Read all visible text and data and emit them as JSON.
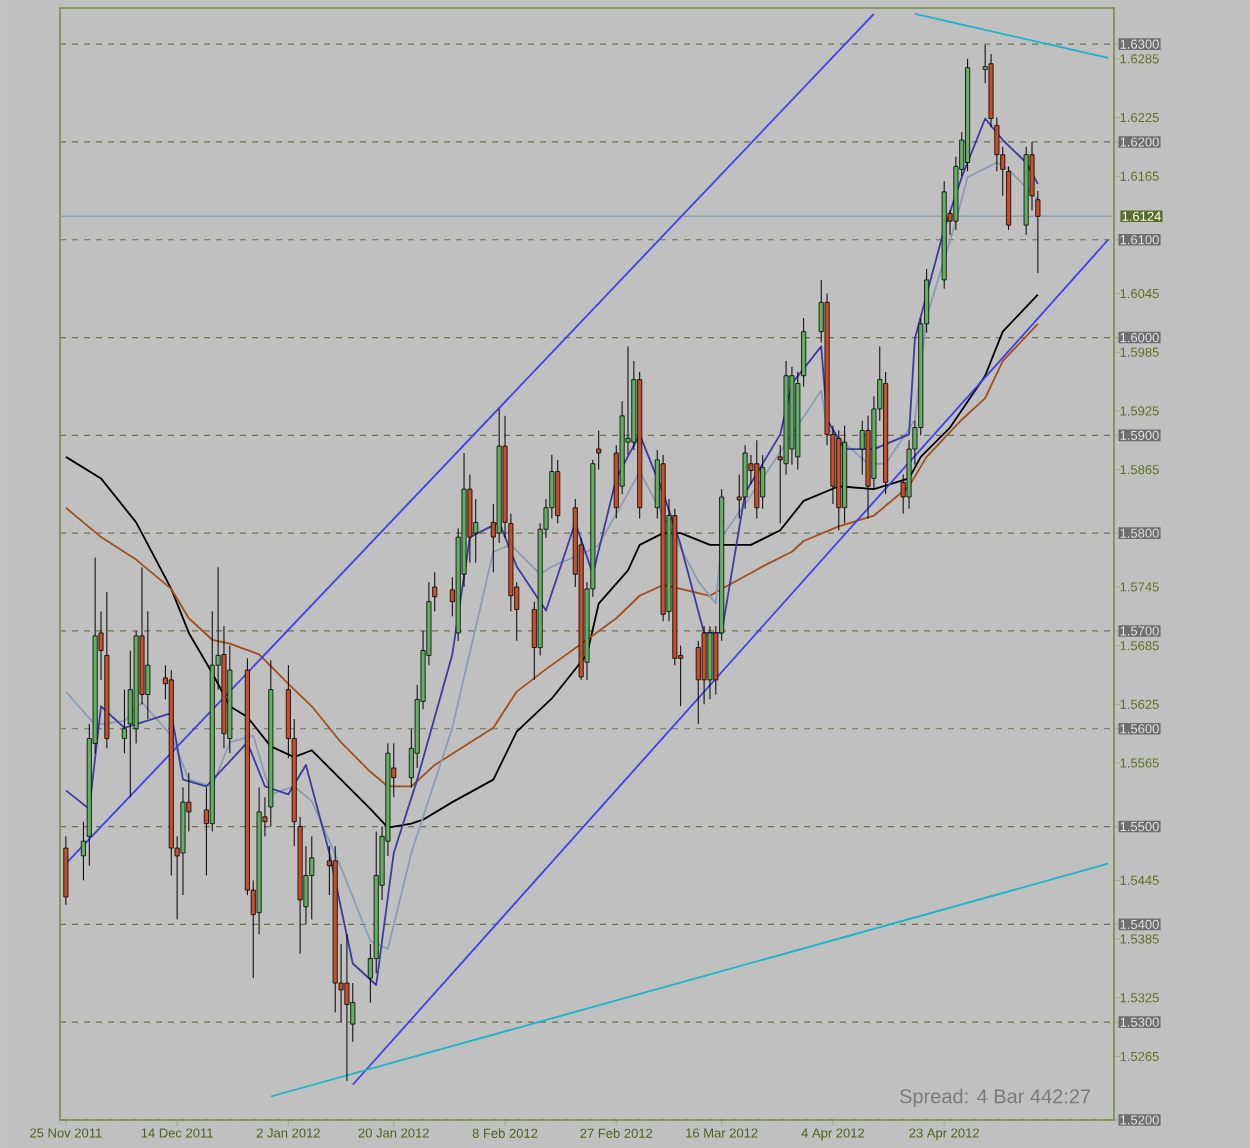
{
  "chart_data": {
    "type": "candlestick",
    "x": [
      "2011-11-25",
      "2011-11-28",
      "2011-11-29",
      "2011-11-30",
      "2011-12-01",
      "2011-12-02",
      "2011-12-05",
      "2011-12-06",
      "2011-12-07",
      "2011-12-08",
      "2011-12-09",
      "2011-12-12",
      "2011-12-13",
      "2011-12-14",
      "2011-12-15",
      "2011-12-16",
      "2011-12-19",
      "2011-12-20",
      "2011-12-21",
      "2011-12-22",
      "2011-12-23",
      "2011-12-26",
      "2011-12-27",
      "2011-12-28",
      "2011-12-29",
      "2011-12-30",
      "2012-01-02",
      "2012-01-03",
      "2012-01-04",
      "2012-01-05",
      "2012-01-06",
      "2012-01-09",
      "2012-01-10",
      "2012-01-11",
      "2012-01-12",
      "2012-01-13",
      "2012-01-16",
      "2012-01-17",
      "2012-01-18",
      "2012-01-19",
      "2012-01-20",
      "2012-01-23",
      "2012-01-24",
      "2012-01-25",
      "2012-01-26",
      "2012-01-27",
      "2012-01-30",
      "2012-01-31",
      "2012-02-01",
      "2012-02-02",
      "2012-02-03",
      "2012-02-06",
      "2012-02-07",
      "2012-02-08",
      "2012-02-09",
      "2012-02-10",
      "2012-02-13",
      "2012-02-14",
      "2012-02-15",
      "2012-02-16",
      "2012-02-17",
      "2012-02-20",
      "2012-02-21",
      "2012-02-22",
      "2012-02-23",
      "2012-02-24",
      "2012-02-27",
      "2012-02-28",
      "2012-02-29",
      "2012-03-01",
      "2012-03-02",
      "2012-03-05",
      "2012-03-06",
      "2012-03-07",
      "2012-03-08",
      "2012-03-09",
      "2012-03-12",
      "2012-03-13",
      "2012-03-14",
      "2012-03-15",
      "2012-03-16",
      "2012-03-19",
      "2012-03-20",
      "2012-03-21",
      "2012-03-22",
      "2012-03-23",
      "2012-03-26",
      "2012-03-27",
      "2012-03-28",
      "2012-03-29",
      "2012-03-30",
      "2012-04-02",
      "2012-04-03",
      "2012-04-04",
      "2012-04-05",
      "2012-04-06",
      "2012-04-09",
      "2012-04-10",
      "2012-04-11",
      "2012-04-12",
      "2012-04-13",
      "2012-04-16",
      "2012-04-17",
      "2012-04-18",
      "2012-04-19",
      "2012-04-20",
      "2012-04-23",
      "2012-04-24",
      "2012-04-25",
      "2012-04-26",
      "2012-04-27",
      "2012-04-30",
      "2012-05-01",
      "2012-05-02",
      "2012-05-03",
      "2012-05-04",
      "2012-05-07",
      "2012-05-08",
      "2012-05-09"
    ],
    "ohlc": [
      [
        1.5478,
        1.549,
        1.542,
        1.5428
      ],
      [
        1.547,
        1.5505,
        1.5445,
        1.5485
      ],
      [
        1.549,
        1.5605,
        1.546,
        1.559
      ],
      [
        1.5585,
        1.5775,
        1.5575,
        1.5695
      ],
      [
        1.5698,
        1.572,
        1.565,
        1.568
      ],
      [
        1.5675,
        1.574,
        1.558,
        1.559
      ],
      [
        1.559,
        1.564,
        1.5575,
        1.56
      ],
      [
        1.5605,
        1.568,
        1.553,
        1.564
      ],
      [
        1.56,
        1.57,
        1.5585,
        1.5695
      ],
      [
        1.5695,
        1.5765,
        1.5625,
        1.5635
      ],
      [
        1.5635,
        1.572,
        1.561,
        1.5665
      ],
      [
        1.5652,
        1.5665,
        1.563,
        1.5646
      ],
      [
        1.565,
        1.566,
        1.545,
        1.5478
      ],
      [
        1.5478,
        1.549,
        1.5405,
        1.547
      ],
      [
        1.5473,
        1.554,
        1.543,
        1.5525
      ],
      [
        1.5525,
        1.5555,
        1.5495,
        1.5515
      ],
      [
        1.5517,
        1.554,
        1.545,
        1.5503
      ],
      [
        1.5503,
        1.572,
        1.5495,
        1.5665
      ],
      [
        1.5665,
        1.5765,
        1.564,
        1.5675
      ],
      [
        1.5676,
        1.5705,
        1.558,
        1.5595
      ],
      [
        1.559,
        1.5685,
        1.5575,
        1.566
      ],
      [
        1.566,
        1.5672,
        1.543,
        1.5435
      ],
      [
        1.5435,
        1.5445,
        1.5345,
        1.541
      ],
      [
        1.5412,
        1.554,
        1.539,
        1.5515
      ],
      [
        1.551,
        1.553,
        1.549,
        1.5505
      ],
      [
        1.552,
        1.567,
        1.55,
        1.564
      ],
      [
        1.564,
        1.5665,
        1.557,
        1.559
      ],
      [
        1.559,
        1.561,
        1.548,
        1.5505
      ],
      [
        1.55,
        1.551,
        1.537,
        1.5425
      ],
      [
        1.5418,
        1.548,
        1.54,
        1.545
      ],
      [
        1.545,
        1.549,
        1.5405,
        1.5468
      ],
      [
        1.5465,
        1.548,
        1.543,
        1.546
      ],
      [
        1.5465,
        1.548,
        1.531,
        1.534
      ],
      [
        1.534,
        1.538,
        1.53,
        1.5333
      ],
      [
        1.534,
        1.539,
        1.524,
        1.5318
      ],
      [
        1.5298,
        1.534,
        1.528,
        1.532
      ],
      [
        1.5345,
        1.538,
        1.532,
        1.5365
      ],
      [
        1.5365,
        1.5495,
        1.535,
        1.545
      ],
      [
        1.544,
        1.55,
        1.5425,
        1.549
      ],
      [
        1.5485,
        1.5585,
        1.547,
        1.5575
      ],
      [
        1.556,
        1.5585,
        1.553,
        1.555
      ],
      [
        1.555,
        1.56,
        1.554,
        1.558
      ],
      [
        1.5575,
        1.5645,
        1.556,
        1.563
      ],
      [
        1.5628,
        1.57,
        1.562,
        1.568
      ],
      [
        1.5675,
        1.575,
        1.5665,
        1.573
      ],
      [
        1.5745,
        1.576,
        1.572,
        1.5735
      ],
      [
        1.5742,
        1.5755,
        1.5715,
        1.573
      ],
      [
        1.5698,
        1.5805,
        1.569,
        1.5796
      ],
      [
        1.5758,
        1.5882,
        1.5745,
        1.5845
      ],
      [
        1.5845,
        1.586,
        1.577,
        1.5796
      ],
      [
        1.58,
        1.5835,
        1.577,
        1.5811
      ],
      [
        1.5811,
        1.583,
        1.576,
        1.5796
      ],
      [
        1.58,
        1.5927,
        1.579,
        1.5889
      ],
      [
        1.5889,
        1.592,
        1.5795,
        1.5811
      ],
      [
        1.581,
        1.582,
        1.572,
        1.5736
      ],
      [
        1.5745,
        1.575,
        1.569,
        1.5722
      ],
      [
        1.5722,
        1.573,
        1.565,
        1.5683
      ],
      [
        1.5683,
        1.581,
        1.5675,
        1.5804
      ],
      [
        1.5804,
        1.5835,
        1.5795,
        1.5826
      ],
      [
        1.5826,
        1.588,
        1.5815,
        1.5863
      ],
      [
        1.5863,
        1.5875,
        1.581,
        1.5818
      ],
      [
        1.5826,
        1.5835,
        1.5745,
        1.5758
      ],
      [
        1.5788,
        1.5795,
        1.565,
        1.5653
      ],
      [
        1.5668,
        1.575,
        1.565,
        1.5743
      ],
      [
        1.5743,
        1.5875,
        1.5735,
        1.5871
      ],
      [
        1.5886,
        1.5905,
        1.5865,
        1.5882
      ],
      [
        1.5882,
        1.589,
        1.5815,
        1.5826
      ],
      [
        1.5848,
        1.5935,
        1.584,
        1.592
      ],
      [
        1.5893,
        1.5991,
        1.588,
        1.5897
      ],
      [
        1.5893,
        1.5976,
        1.5885,
        1.5957
      ],
      [
        1.5957,
        1.5965,
        1.5815,
        1.5826
      ],
      [
        1.5826,
        1.5885,
        1.5815,
        1.5875
      ],
      [
        1.5871,
        1.588,
        1.571,
        1.5717
      ],
      [
        1.572,
        1.5835,
        1.571,
        1.5818
      ],
      [
        1.5818,
        1.5825,
        1.5665,
        1.5672
      ],
      [
        1.5675,
        1.5685,
        1.5623,
        1.5672
      ],
      [
        1.5683,
        1.569,
        1.5605,
        1.565
      ],
      [
        1.5698,
        1.5705,
        1.5625,
        1.565
      ],
      [
        1.565,
        1.5705,
        1.563,
        1.5698
      ],
      [
        1.5698,
        1.5705,
        1.5635,
        1.565
      ],
      [
        1.5698,
        1.5845,
        1.569,
        1.5837
      ],
      [
        1.5837,
        1.586,
        1.5815,
        1.5834
      ],
      [
        1.5837,
        1.589,
        1.5825,
        1.5882
      ],
      [
        1.5871,
        1.588,
        1.585,
        1.5864
      ],
      [
        1.5871,
        1.5895,
        1.5815,
        1.5826
      ],
      [
        1.5837,
        1.588,
        1.5825,
        1.5867
      ],
      [
        1.5878,
        1.589,
        1.581,
        1.5875
      ],
      [
        1.5871,
        1.5976,
        1.586,
        1.5961
      ],
      [
        1.5886,
        1.597,
        1.587,
        1.5961
      ],
      [
        1.5878,
        1.5965,
        1.5865,
        1.5953
      ],
      [
        1.5961,
        1.602,
        1.595,
        1.6006
      ],
      [
        1.6006,
        1.6059,
        1.5995,
        1.6036
      ],
      [
        1.6036,
        1.6045,
        1.589,
        1.5901
      ],
      [
        1.5901,
        1.591,
        1.583,
        1.5848
      ],
      [
        1.5897,
        1.5905,
        1.5803,
        1.5826
      ],
      [
        1.5826,
        1.591,
        1.581,
        1.5893
      ],
      [
        1.5886,
        1.5915,
        1.586,
        1.5905
      ],
      [
        1.5905,
        1.592,
        1.5815,
        1.5848
      ],
      [
        1.5856,
        1.594,
        1.5845,
        1.5927
      ],
      [
        1.5927,
        1.5991,
        1.5915,
        1.5957
      ],
      [
        1.5953,
        1.5965,
        1.584,
        1.5852
      ],
      [
        1.5852,
        1.586,
        1.582,
        1.5837
      ],
      [
        1.5837,
        1.5895,
        1.5825,
        1.5886
      ],
      [
        1.5886,
        1.5915,
        1.587,
        1.5908
      ],
      [
        1.5908,
        1.602,
        1.59,
        1.6014
      ],
      [
        1.6014,
        1.607,
        1.6005,
        1.6059
      ],
      [
        1.6059,
        1.616,
        1.605,
        1.6149
      ],
      [
        1.6127,
        1.613,
        1.6105,
        1.6119
      ],
      [
        1.6119,
        1.6185,
        1.611,
        1.6175
      ],
      [
        1.6172,
        1.621,
        1.6165,
        1.6202
      ],
      [
        1.6179,
        1.6285,
        1.617,
        1.6276
      ],
      [
        1.6274,
        1.6299,
        1.626,
        1.6277
      ],
      [
        1.628,
        1.629,
        1.6215,
        1.6224
      ],
      [
        1.6217,
        1.6225,
        1.617,
        1.6187
      ],
      [
        1.6187,
        1.6195,
        1.6145,
        1.6172
      ],
      [
        1.617,
        1.6175,
        1.611,
        1.6115
      ],
      [
        1.6115,
        1.6195,
        1.6105,
        1.6187
      ],
      [
        1.6187,
        1.62,
        1.613,
        1.6145
      ],
      [
        1.6141,
        1.615,
        1.6066,
        1.6124
      ]
    ],
    "colors": [
      "#c4502c",
      "#62b062",
      "#62b062",
      "#62b062",
      "#c4502c",
      "#c4502c",
      "#62b062",
      "#62b062",
      "#62b062",
      "#c4502c",
      "#62b062",
      "#c4502c",
      "#c4502c",
      "#c4502c",
      "#62b062",
      "#c4502c",
      "#c4502c",
      "#62b062",
      "#62b062",
      "#c4502c",
      "#62b062",
      "#c4502c",
      "#c4502c",
      "#62b062",
      "#c4502c",
      "#62b062",
      "#c4502c",
      "#c4502c",
      "#c4502c",
      "#62b062",
      "#62b062",
      "#c4502c",
      "#c4502c",
      "#c4502c",
      "#c4502c",
      "#62b062",
      "#62b062",
      "#62b062",
      "#62b062",
      "#62b062",
      "#c4502c",
      "#62b062",
      "#62b062",
      "#62b062",
      "#62b062",
      "#c4502c",
      "#c4502c",
      "#62b062",
      "#62b062",
      "#c4502c",
      "#62b062",
      "#c4502c",
      "#62b062",
      "#c4502c",
      "#c4502c",
      "#c4502c",
      "#c4502c",
      "#62b062",
      "#62b062",
      "#62b062",
      "#c4502c",
      "#c4502c",
      "#c4502c",
      "#62b062",
      "#62b062",
      "#c4502c",
      "#c4502c",
      "#62b062",
      "#62b062",
      "#62b062",
      "#c4502c",
      "#62b062",
      "#c4502c",
      "#62b062",
      "#c4502c",
      "#c4502c",
      "#c4502c",
      "#c4502c",
      "#62b062",
      "#c4502c",
      "#62b062",
      "#c4502c",
      "#62b062",
      "#c4502c",
      "#c4502c",
      "#62b062",
      "#c4502c",
      "#62b062",
      "#62b062",
      "#62b062",
      "#62b062",
      "#62b062",
      "#c4502c",
      "#c4502c",
      "#c4502c",
      "#62b062",
      "#62b062",
      "#c4502c",
      "#62b062",
      "#62b062",
      "#c4502c",
      "#c4502c",
      "#62b062",
      "#62b062",
      "#62b062",
      "#62b062",
      "#62b062",
      "#c4502c",
      "#62b062",
      "#62b062",
      "#62b062",
      "#62b062",
      "#c4502c",
      "#c4502c",
      "#c4502c",
      "#c4502c",
      "#62b062",
      "#c4502c",
      "#c4502c"
    ],
    "series": [
      {
        "type": "line",
        "color": "#000000",
        "x": [
          "2011-11-25",
          "2011-12-01",
          "2011-12-07",
          "2011-12-13",
          "2011-12-16",
          "2011-12-20",
          "2011-12-23",
          "2011-12-26",
          "2011-12-30",
          "2012-01-03",
          "2012-01-06",
          "2012-01-11",
          "2012-01-16",
          "2012-01-19",
          "2012-01-23",
          "2012-01-25",
          "2012-01-30",
          "2012-02-06",
          "2012-02-10",
          "2012-02-16",
          "2012-02-22",
          "2012-02-24",
          "2012-02-29",
          "2012-03-02",
          "2012-03-06",
          "2012-03-09",
          "2012-03-14",
          "2012-03-21",
          "2012-03-26",
          "2012-03-30",
          "2012-04-05",
          "2012-04-11",
          "2012-04-17",
          "2012-04-19",
          "2012-04-24",
          "2012-04-30",
          "2012-05-03",
          "2012-05-09"
        ],
        "values": [
          1.5878,
          1.5856,
          1.5811,
          1.5743,
          1.5698,
          1.5657,
          1.5623,
          1.5612,
          1.5582,
          1.5571,
          1.5578,
          1.5548,
          1.5518,
          1.5499,
          1.5503,
          1.5507,
          1.5525,
          1.5548,
          1.5597,
          1.5631,
          1.5676,
          1.5728,
          1.5762,
          1.5788,
          1.58,
          1.58,
          1.5788,
          1.5788,
          1.5803,
          1.5833,
          1.5848,
          1.5845,
          1.5856,
          1.5878,
          1.5908,
          1.5961,
          1.6006,
          1.6044
        ]
      },
      {
        "type": "line",
        "color": "#a0501e",
        "x": [
          "2011-11-25",
          "2011-12-01",
          "2011-12-07",
          "2011-12-13",
          "2011-12-16",
          "2011-12-20",
          "2011-12-23",
          "2011-12-28",
          "2012-01-02",
          "2012-01-06",
          "2012-01-11",
          "2012-01-16",
          "2012-01-19",
          "2012-01-23",
          "2012-01-27",
          "2012-02-06",
          "2012-02-10",
          "2012-02-15",
          "2012-02-22",
          "2012-02-27",
          "2012-03-02",
          "2012-03-06",
          "2012-03-09",
          "2012-03-14",
          "2012-03-16",
          "2012-03-23",
          "2012-03-28",
          "2012-03-30",
          "2012-04-05",
          "2012-04-11",
          "2012-04-17",
          "2012-04-20",
          "2012-04-26",
          "2012-04-30",
          "2012-05-03",
          "2012-05-09"
        ],
        "values": [
          1.5826,
          1.5796,
          1.5773,
          1.5743,
          1.5713,
          1.5691,
          1.5687,
          1.5676,
          1.5646,
          1.5623,
          1.5586,
          1.5556,
          1.5541,
          1.5541,
          1.5563,
          1.5601,
          1.5638,
          1.5661,
          1.5691,
          1.5713,
          1.5736,
          1.5747,
          1.5743,
          1.5736,
          1.5743,
          1.5766,
          1.5781,
          1.5792,
          1.5807,
          1.5818,
          1.5848,
          1.5878,
          1.5916,
          1.5938,
          1.5976,
          1.6014
        ]
      },
      {
        "type": "line",
        "color": "#8c9cb4",
        "x": [
          "2011-11-25",
          "2011-11-30",
          "2011-12-05",
          "2011-12-08",
          "2011-12-13",
          "2011-12-16",
          "2011-12-20",
          "2011-12-23",
          "2011-12-27",
          "2011-12-30",
          "2012-01-03",
          "2012-01-06",
          "2012-01-11",
          "2012-01-16",
          "2012-01-19",
          "2012-01-23",
          "2012-01-30",
          "2012-02-06",
          "2012-02-09",
          "2012-02-14",
          "2012-02-16",
          "2012-02-22",
          "2012-02-24",
          "2012-02-29",
          "2012-03-02",
          "2012-03-07",
          "2012-03-12",
          "2012-03-15",
          "2012-03-16",
          "2012-03-23",
          "2012-03-28",
          "2012-04-02",
          "2012-04-03",
          "2012-04-10",
          "2012-04-13",
          "2012-04-18",
          "2012-04-20",
          "2012-04-25",
          "2012-04-27",
          "2012-05-02",
          "2012-05-04",
          "2012-05-09"
        ],
        "values": [
          1.5638,
          1.5604,
          1.5608,
          1.5627,
          1.5593,
          1.5548,
          1.5541,
          1.5586,
          1.5593,
          1.5533,
          1.5541,
          1.5526,
          1.5458,
          1.5383,
          1.5375,
          1.5473,
          1.5601,
          1.5781,
          1.5788,
          1.5758,
          1.5766,
          1.5781,
          1.5788,
          1.5841,
          1.5863,
          null,
          1.5751,
          1.5728,
          1.5796,
          1.5856,
          null,
          1.5946,
          1.5908,
          1.5871,
          1.5871,
          1.5916,
          1.6021,
          1.6119,
          1.6164,
          1.6179,
          1.6172,
          1.6141
        ]
      },
      {
        "type": "line",
        "color": "#3c3ca0",
        "x": [
          "2011-11-25",
          "2011-11-29",
          "2011-12-01",
          "2011-12-05",
          "2011-12-08",
          "2011-12-13",
          "2011-12-15",
          "2011-12-19",
          "2011-12-22",
          "2011-12-26",
          "2011-12-29",
          "2012-01-02",
          "2012-01-05",
          "2012-01-09",
          "2012-01-13",
          "2012-01-17",
          "2012-01-20",
          "2012-01-24",
          "2012-01-30",
          "2012-02-02",
          "2012-02-07",
          "2012-02-10",
          "2012-02-15",
          "2012-02-20",
          "2012-02-23",
          "2012-02-27",
          "2012-03-02",
          "2012-03-06",
          "2012-03-09",
          "2012-03-13",
          "2012-03-16",
          "2012-03-20",
          "2012-03-26",
          "2012-03-28",
          "2012-04-02",
          "2012-04-03",
          "2012-04-06",
          "2012-04-11",
          "2012-04-17",
          "2012-04-18",
          "2012-04-23",
          "2012-04-26",
          "2012-04-30",
          "2012-05-03",
          "2012-05-07",
          "2012-05-09"
        ],
        "values": [
          1.5537,
          1.5518,
          1.5623,
          1.5601,
          null,
          1.5616,
          1.5548,
          1.5541,
          null,
          1.5586,
          1.5541,
          1.5533,
          1.5563,
          1.5473,
          1.536,
          1.5338,
          1.5473,
          1.5548,
          1.5676,
          1.5796,
          1.5811,
          1.5766,
          1.5721,
          1.5811,
          1.5758,
          1.5856,
          1.5901,
          1.5841,
          1.5788,
          1.5698,
          1.5698,
          1.5841,
          1.5901,
          1.5953,
          1.5991,
          1.5916,
          1.5886,
          1.5886,
          1.5901,
          1.5999,
          1.6111,
          1.6164,
          1.6224,
          1.6202,
          1.6179,
          1.6157
        ]
      },
      {
        "type": "line",
        "color": "#4040e8",
        "x": [
          "2011-11-25",
          "2012-04-11"
        ],
        "values": [
          1.5462,
          1.6331
        ]
      },
      {
        "type": "line",
        "color": "#4040e8",
        "x": [
          "2012-01-13",
          "2012-05-21"
        ],
        "values": [
          1.5236,
          1.61
        ]
      },
      {
        "type": "line",
        "color": "#18b4c8",
        "x": [
          "2011-12-30",
          "2012-05-21"
        ],
        "values": [
          1.5224,
          1.5462
        ]
      },
      {
        "type": "line",
        "color": "#18b4c8",
        "x": [
          "2012-04-18",
          "2012-05-21"
        ],
        "values": [
          1.6331,
          1.6286
        ]
      }
    ],
    "xlim": [
      "2011-11-24",
      "2012-05-22"
    ],
    "xticks": [
      {
        "value": "2011-11-25",
        "label": "25 Nov 2011"
      },
      {
        "value": "2011-12-14",
        "label": "14 Dec 2011"
      },
      {
        "value": "2012-01-02",
        "label": "2 Jan 2012"
      },
      {
        "value": "2012-01-20",
        "label": "20 Jan 2012"
      },
      {
        "value": "2012-02-08",
        "label": "8 Feb 2012"
      },
      {
        "value": "2012-02-27",
        "label": "27 Feb 2012"
      },
      {
        "value": "2012-03-16",
        "label": "16 Mar 2012"
      },
      {
        "value": "2012-04-04",
        "label": "4 Apr 2012"
      },
      {
        "value": "2012-04-23",
        "label": "23 Apr 2012"
      }
    ],
    "ylim": [
      1.52,
      1.6337
    ],
    "yticks": [
      {
        "value": 1.63,
        "label": "1.6300"
      },
      {
        "value": 1.6285,
        "label": "1.6285"
      },
      {
        "value": 1.6225,
        "label": "1.6225"
      },
      {
        "value": 1.62,
        "label": "1.6200"
      },
      {
        "value": 1.6165,
        "label": "1.6165"
      },
      {
        "value": 1.61,
        "label": "1.6100"
      },
      {
        "value": 1.6045,
        "label": "1.6045"
      },
      {
        "value": 1.6,
        "label": "1.6000"
      },
      {
        "value": 1.5985,
        "label": "1.5985"
      },
      {
        "value": 1.5925,
        "label": "1.5925"
      },
      {
        "value": 1.59,
        "label": "1.5900"
      },
      {
        "value": 1.5865,
        "label": "1.5865"
      },
      {
        "value": 1.58,
        "label": "1.5800"
      },
      {
        "value": 1.5745,
        "label": "1.5745"
      },
      {
        "value": 1.57,
        "label": "1.5700"
      },
      {
        "value": 1.5685,
        "label": "1.5685"
      },
      {
        "value": 1.5625,
        "label": "1.5625"
      },
      {
        "value": 1.56,
        "label": "1.5600"
      },
      {
        "value": 1.5565,
        "label": "1.5565"
      },
      {
        "value": 1.55,
        "label": "1.5500"
      },
      {
        "value": 1.5445,
        "label": "1.5445"
      },
      {
        "value": 1.54,
        "label": "1.5400"
      },
      {
        "value": 1.5385,
        "label": "1.5385"
      },
      {
        "value": 1.5325,
        "label": "1.5325"
      },
      {
        "value": 1.53,
        "label": "1.5300"
      },
      {
        "value": 1.5265,
        "label": "1.5265"
      },
      {
        "value": 1.52,
        "label": "1.5200"
      }
    ],
    "ref_lines": [
      {
        "axis": "y",
        "value": 1.6124,
        "label": "1.6124",
        "color": "#8ea2b6"
      }
    ],
    "annotations": [
      "Spread: 4 Bar  442:27"
    ],
    "grid": "y"
  }
}
